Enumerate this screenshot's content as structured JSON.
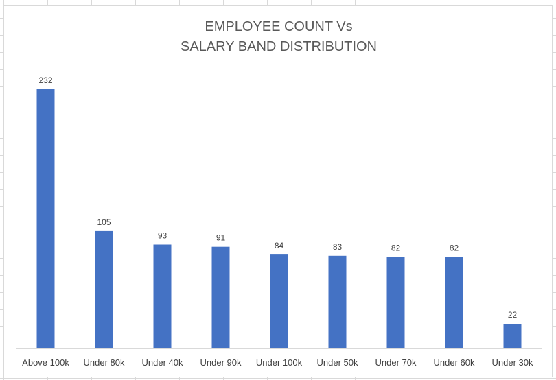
{
  "chart_data": {
    "type": "bar",
    "title_line1": "EMPLOYEE COUNT Vs",
    "title_line2": "SALARY BAND DISTRIBUTION",
    "xlabel": "",
    "ylabel": "",
    "categories": [
      "Above 100k",
      "Under 80k",
      "Under 40k",
      "Under 90k",
      "Under 100k",
      "Under 50k",
      "Under 70k",
      "Under 60k",
      "Under 30k"
    ],
    "values": [
      232,
      105,
      93,
      91,
      84,
      83,
      82,
      82,
      22
    ],
    "ylim": [
      0,
      232
    ],
    "grid": false,
    "legend": "none",
    "data_labels": true,
    "bar_color": "#4472c4",
    "label_color": "#404040",
    "axis_color": "#d9d9d9"
  }
}
